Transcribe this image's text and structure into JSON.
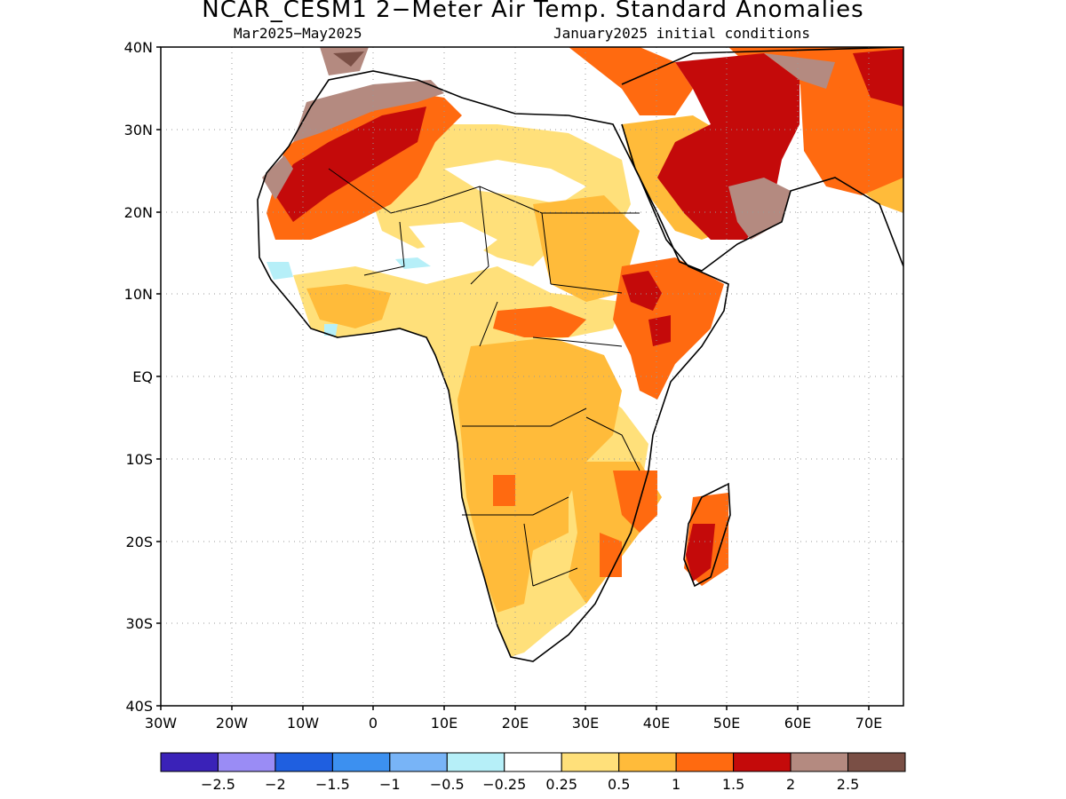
{
  "title": "NCAR_CESM1 2−Meter Air Temp. Standard Anomalies",
  "subtitle_left": "Mar2025−May2025",
  "subtitle_right": "January2025 initial conditions",
  "map": {
    "lat_ticks": [
      "40N",
      "30N",
      "20N",
      "10N",
      "EQ",
      "10S",
      "20S",
      "30S",
      "40S"
    ],
    "lon_ticks": [
      "30W",
      "20W",
      "10W",
      "0",
      "10E",
      "20E",
      "30E",
      "40E",
      "50E",
      "60E",
      "70E"
    ],
    "lat_range": [
      -40,
      40
    ],
    "lon_range": [
      -30,
      75
    ],
    "grid": "dotted"
  },
  "colorbar": {
    "colors": [
      "#3a22b8",
      "#9a8cf5",
      "#1f5fe0",
      "#3c90f0",
      "#78b4f7",
      "#b6eff8",
      "#ffffff",
      "#ffe07a",
      "#ffbb3a",
      "#ff6a10",
      "#c40a0a",
      "#b48a80",
      "#7a4f45"
    ],
    "labels": [
      "−2.5",
      "−2",
      "−1.5",
      "−1",
      "−0.5",
      "−0.25",
      "0.25",
      "0.5",
      "1",
      "1.5",
      "2",
      "2.5"
    ]
  }
}
